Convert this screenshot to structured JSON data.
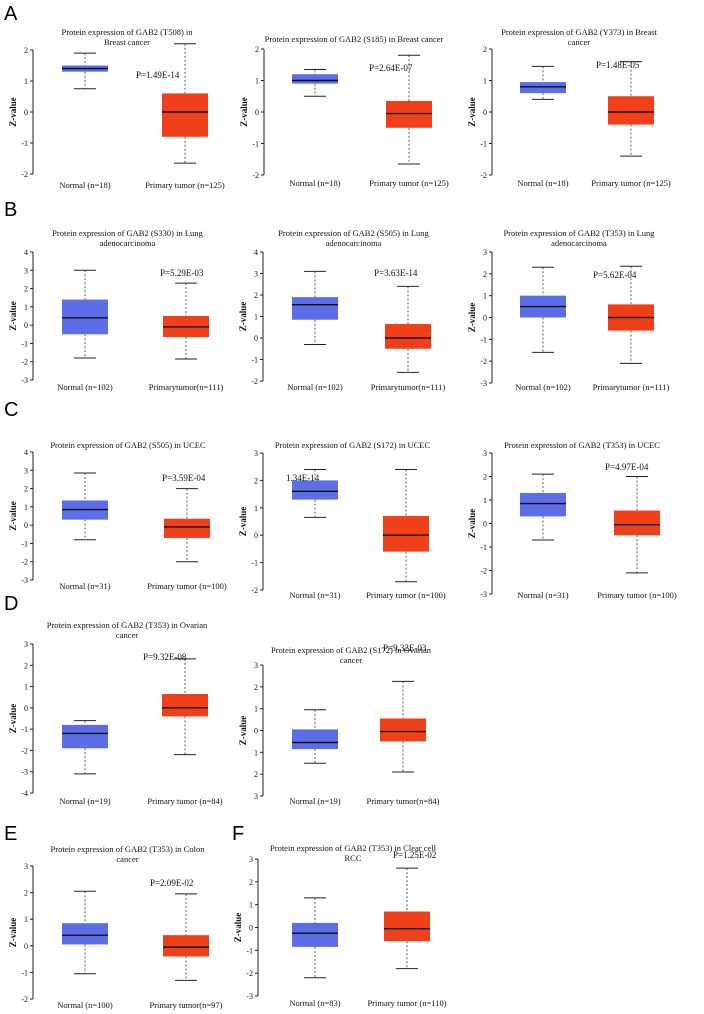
{
  "panels": [
    "A",
    "B",
    "C",
    "D",
    "E",
    "F"
  ],
  "colors": {
    "normal": "#5b6ee8",
    "tumor": "#f0401a",
    "median": "#111111",
    "whisker": "#333333"
  },
  "chart_data": [
    {
      "panel": "A",
      "type": "box",
      "title": [
        "Protein expression of GAB2 (T508) in",
        "Breast cancer"
      ],
      "ylabel": "Z-value",
      "ylim": [
        -2,
        2
      ],
      "yticks": [
        "2",
        "1",
        "0",
        "-1",
        "-2"
      ],
      "categories": [
        "Normal (n=18)",
        "Primary tumor (n=125)"
      ],
      "pvalue": "P=1.49E-14",
      "boxes": [
        {
          "min": 0.75,
          "q1": 1.3,
          "median": 1.4,
          "q3": 1.5,
          "max": 1.9
        },
        {
          "min": -1.65,
          "q1": -0.8,
          "median": 0.0,
          "q3": 0.6,
          "max": 2.2
        }
      ]
    },
    {
      "panel": "A",
      "type": "box",
      "title": [
        "Protein expression of GAB2 (S185) in Breast cancer"
      ],
      "ylabel": "Z-value",
      "ylim": [
        -2,
        2
      ],
      "yticks": [
        "2",
        "1",
        "0",
        "-1",
        "-2"
      ],
      "categories": [
        "Normal (n=18)",
        "Primary tumor (n=125)"
      ],
      "pvalue": "P=2.64E-07",
      "boxes": [
        {
          "min": 0.5,
          "q1": 0.9,
          "median": 1.0,
          "q3": 1.2,
          "max": 1.35
        },
        {
          "min": -1.65,
          "q1": -0.5,
          "median": -0.05,
          "q3": 0.35,
          "max": 1.8
        }
      ]
    },
    {
      "panel": "A",
      "type": "box",
      "title": [
        "Protein expression of GAB2 (Y373) in Breast",
        "cancer"
      ],
      "ylabel": "Z-value",
      "ylim": [
        -2,
        2
      ],
      "yticks": [
        "2",
        "1",
        "0",
        "-1",
        "-2"
      ],
      "categories": [
        "Normal (n=18)",
        "Primary tumor (n=125)"
      ],
      "pvalue": "P=1.48E-05",
      "boxes": [
        {
          "min": 0.4,
          "q1": 0.6,
          "median": 0.8,
          "q3": 0.95,
          "max": 1.45
        },
        {
          "min": -1.4,
          "q1": -0.4,
          "median": 0.0,
          "q3": 0.5,
          "max": 1.6
        }
      ]
    },
    {
      "panel": "B",
      "type": "box",
      "title": [
        "Protein expression of GAB2 (S330) in Lung",
        "adenocarcinoma"
      ],
      "ylabel": "Z-value",
      "ylim": [
        -3,
        4
      ],
      "yticks": [
        "4",
        "3",
        "2",
        "1",
        "0",
        "-1",
        "-2",
        "-3"
      ],
      "categories": [
        "Normal (n=102)",
        "Primarytumor(n=111)"
      ],
      "pvalue": "P=5.29E-03",
      "boxes": [
        {
          "min": -1.8,
          "q1": -0.5,
          "median": 0.4,
          "q3": 1.4,
          "max": 3.0
        },
        {
          "min": -1.85,
          "q1": -0.65,
          "median": -0.1,
          "q3": 0.5,
          "max": 2.3
        }
      ]
    },
    {
      "panel": "B",
      "type": "box",
      "title": [
        "Protein expression of GAB2 (S505) in Lung",
        "adenocarcinoma"
      ],
      "ylabel": "Z-value",
      "ylim": [
        -2,
        4
      ],
      "yticks": [
        "4",
        "3",
        "2",
        "1",
        "0",
        "-1",
        "-2"
      ],
      "categories": [
        "Normal (n=102)",
        "Primarytumor(n=111)"
      ],
      "pvalue": "P=3.63E-14",
      "boxes": [
        {
          "min": -0.3,
          "q1": 0.85,
          "median": 1.55,
          "q3": 1.9,
          "max": 3.1
        },
        {
          "min": -1.6,
          "q1": -0.5,
          "median": 0.0,
          "q3": 0.65,
          "max": 2.4
        }
      ]
    },
    {
      "panel": "B",
      "type": "box",
      "title": [
        "Protein expression of GAB2 (T353) in Lung",
        "adenocarcinoma"
      ],
      "ylabel": "Z-value",
      "ylim": [
        -3,
        3
      ],
      "yticks": [
        "3",
        "2",
        "1",
        "0",
        "-1",
        "-2",
        "-3"
      ],
      "categories": [
        "Normal (n=102)",
        "Primarytumor (n=111)"
      ],
      "pvalue": "P=5.62E-04",
      "boxes": [
        {
          "min": -1.6,
          "q1": 0.0,
          "median": 0.5,
          "q3": 1.0,
          "max": 2.3
        },
        {
          "min": -2.1,
          "q1": -0.6,
          "median": 0.0,
          "q3": 0.6,
          "max": 2.35
        }
      ]
    },
    {
      "panel": "C",
      "type": "box",
      "title": [
        "Protein expression of GAB2 (S505) in UCEC"
      ],
      "ylabel": "Z-value",
      "ylim": [
        -3,
        4
      ],
      "yticks": [
        "4",
        "3",
        "2",
        "1",
        "0",
        "-1",
        "-2",
        "-3"
      ],
      "categories": [
        "Normal (n=31)",
        "Primary tumor (n=100)"
      ],
      "pvalue": "P=3.59E-04",
      "boxes": [
        {
          "min": -0.8,
          "q1": 0.3,
          "median": 0.85,
          "q3": 1.35,
          "max": 2.85
        },
        {
          "min": -2.0,
          "q1": -0.7,
          "median": -0.1,
          "q3": 0.35,
          "max": 2.0
        }
      ]
    },
    {
      "panel": "C",
      "type": "box",
      "title": [
        "Protein expression of GAB2 (S172) in UCEC"
      ],
      "ylabel": "Z-value",
      "ylim": [
        -2,
        3
      ],
      "yticks": [
        "3",
        "2",
        "1",
        "0",
        "-1",
        "-2"
      ],
      "categories": [
        "Normal (n=31)",
        "Primary tumor (n=100)"
      ],
      "pvalue": "1.34E-14",
      "boxes": [
        {
          "min": 0.65,
          "q1": 1.3,
          "median": 1.6,
          "q3": 2.0,
          "max": 2.4
        },
        {
          "min": -1.7,
          "q1": -0.6,
          "median": 0.0,
          "q3": 0.7,
          "max": 2.4
        }
      ]
    },
    {
      "panel": "C",
      "type": "box",
      "title": [
        "Protein expression of GAB2 (T353) in UCEC"
      ],
      "ylabel": "Z-value",
      "ylim": [
        -3,
        3
      ],
      "yticks": [
        "3",
        "2",
        "1",
        "0",
        "-1",
        "-2",
        "-3"
      ],
      "categories": [
        "Normal (n=31)",
        "Primary tumor (n=100)"
      ],
      "pvalue": "P=4.97E-04",
      "boxes": [
        {
          "min": -0.7,
          "q1": 0.3,
          "median": 0.85,
          "q3": 1.3,
          "max": 2.1
        },
        {
          "min": -2.1,
          "q1": -0.5,
          "median": -0.05,
          "q3": 0.55,
          "max": 2.0
        }
      ]
    },
    {
      "panel": "D",
      "type": "box",
      "title": [
        "Protein expression of GAB2 (T353) in Ovarian",
        "cancer"
      ],
      "ylabel": "Z-value",
      "ylim": [
        -4,
        3
      ],
      "yticks": [
        "3",
        "2",
        "1",
        "0",
        "-1",
        "-2",
        "-3",
        "-4"
      ],
      "categories": [
        "Normal (n=19)",
        "Primary tumor (n=84)"
      ],
      "pvalue": "P=9.32E-08",
      "boxes": [
        {
          "min": -3.1,
          "q1": -1.9,
          "median": -1.2,
          "q3": -0.8,
          "max": -0.6
        },
        {
          "min": -2.2,
          "q1": -0.4,
          "median": 0.0,
          "q3": 0.65,
          "max": 2.3
        }
      ]
    },
    {
      "panel": "D",
      "type": "box",
      "title": [
        "Protein expression of GAB2 (S172) in Ovarian",
        "cancer"
      ],
      "ylabel": "Z-value",
      "ylim": [
        -3,
        3
      ],
      "yticks": [
        "3",
        "2",
        "1",
        "0",
        "1",
        "2",
        "3"
      ],
      "categories": [
        "Normal (n=19)",
        "Primary tumor(n=84)"
      ],
      "pvalue": "P=9.32E-03",
      "boxes": [
        {
          "min": -1.5,
          "q1": -0.85,
          "median": -0.55,
          "q3": 0.05,
          "max": 0.95
        },
        {
          "min": -1.9,
          "q1": -0.5,
          "median": -0.05,
          "q3": 0.55,
          "max": 2.25
        }
      ]
    },
    {
      "panel": "E",
      "type": "box",
      "title": [
        "Protein expression of GAB2 (T353) in Colon",
        "cancer"
      ],
      "ylabel": "Z-value",
      "ylim": [
        -2,
        3
      ],
      "yticks": [
        "3",
        "2",
        "1",
        "0",
        "-1",
        "-2"
      ],
      "categories": [
        "Normal (n=100)",
        "Primary tumor(n=97)"
      ],
      "pvalue": "P=2.09E-02",
      "boxes": [
        {
          "min": -1.05,
          "q1": 0.05,
          "median": 0.4,
          "q3": 0.85,
          "max": 2.05
        },
        {
          "min": -1.3,
          "q1": -0.4,
          "median": -0.05,
          "q3": 0.4,
          "max": 1.95
        }
      ]
    },
    {
      "panel": "F",
      "type": "box",
      "title": [
        "Protein expression of GAB2 (T353) in Clear cell",
        "RCC"
      ],
      "ylabel": "Z-value",
      "ylim": [
        -3,
        3
      ],
      "yticks": [
        "3",
        "2",
        "1",
        "0",
        "-1",
        "-2",
        "-3"
      ],
      "categories": [
        "Normal (n=83)",
        "Primary tumor (n=110)"
      ],
      "pvalue": "P=1.25E-02",
      "boxes": [
        {
          "min": -2.2,
          "q1": -0.85,
          "median": -0.25,
          "q3": 0.2,
          "max": 1.3
        },
        {
          "min": -1.8,
          "q1": -0.6,
          "median": -0.05,
          "q3": 0.7,
          "max": 2.6
        }
      ]
    }
  ]
}
